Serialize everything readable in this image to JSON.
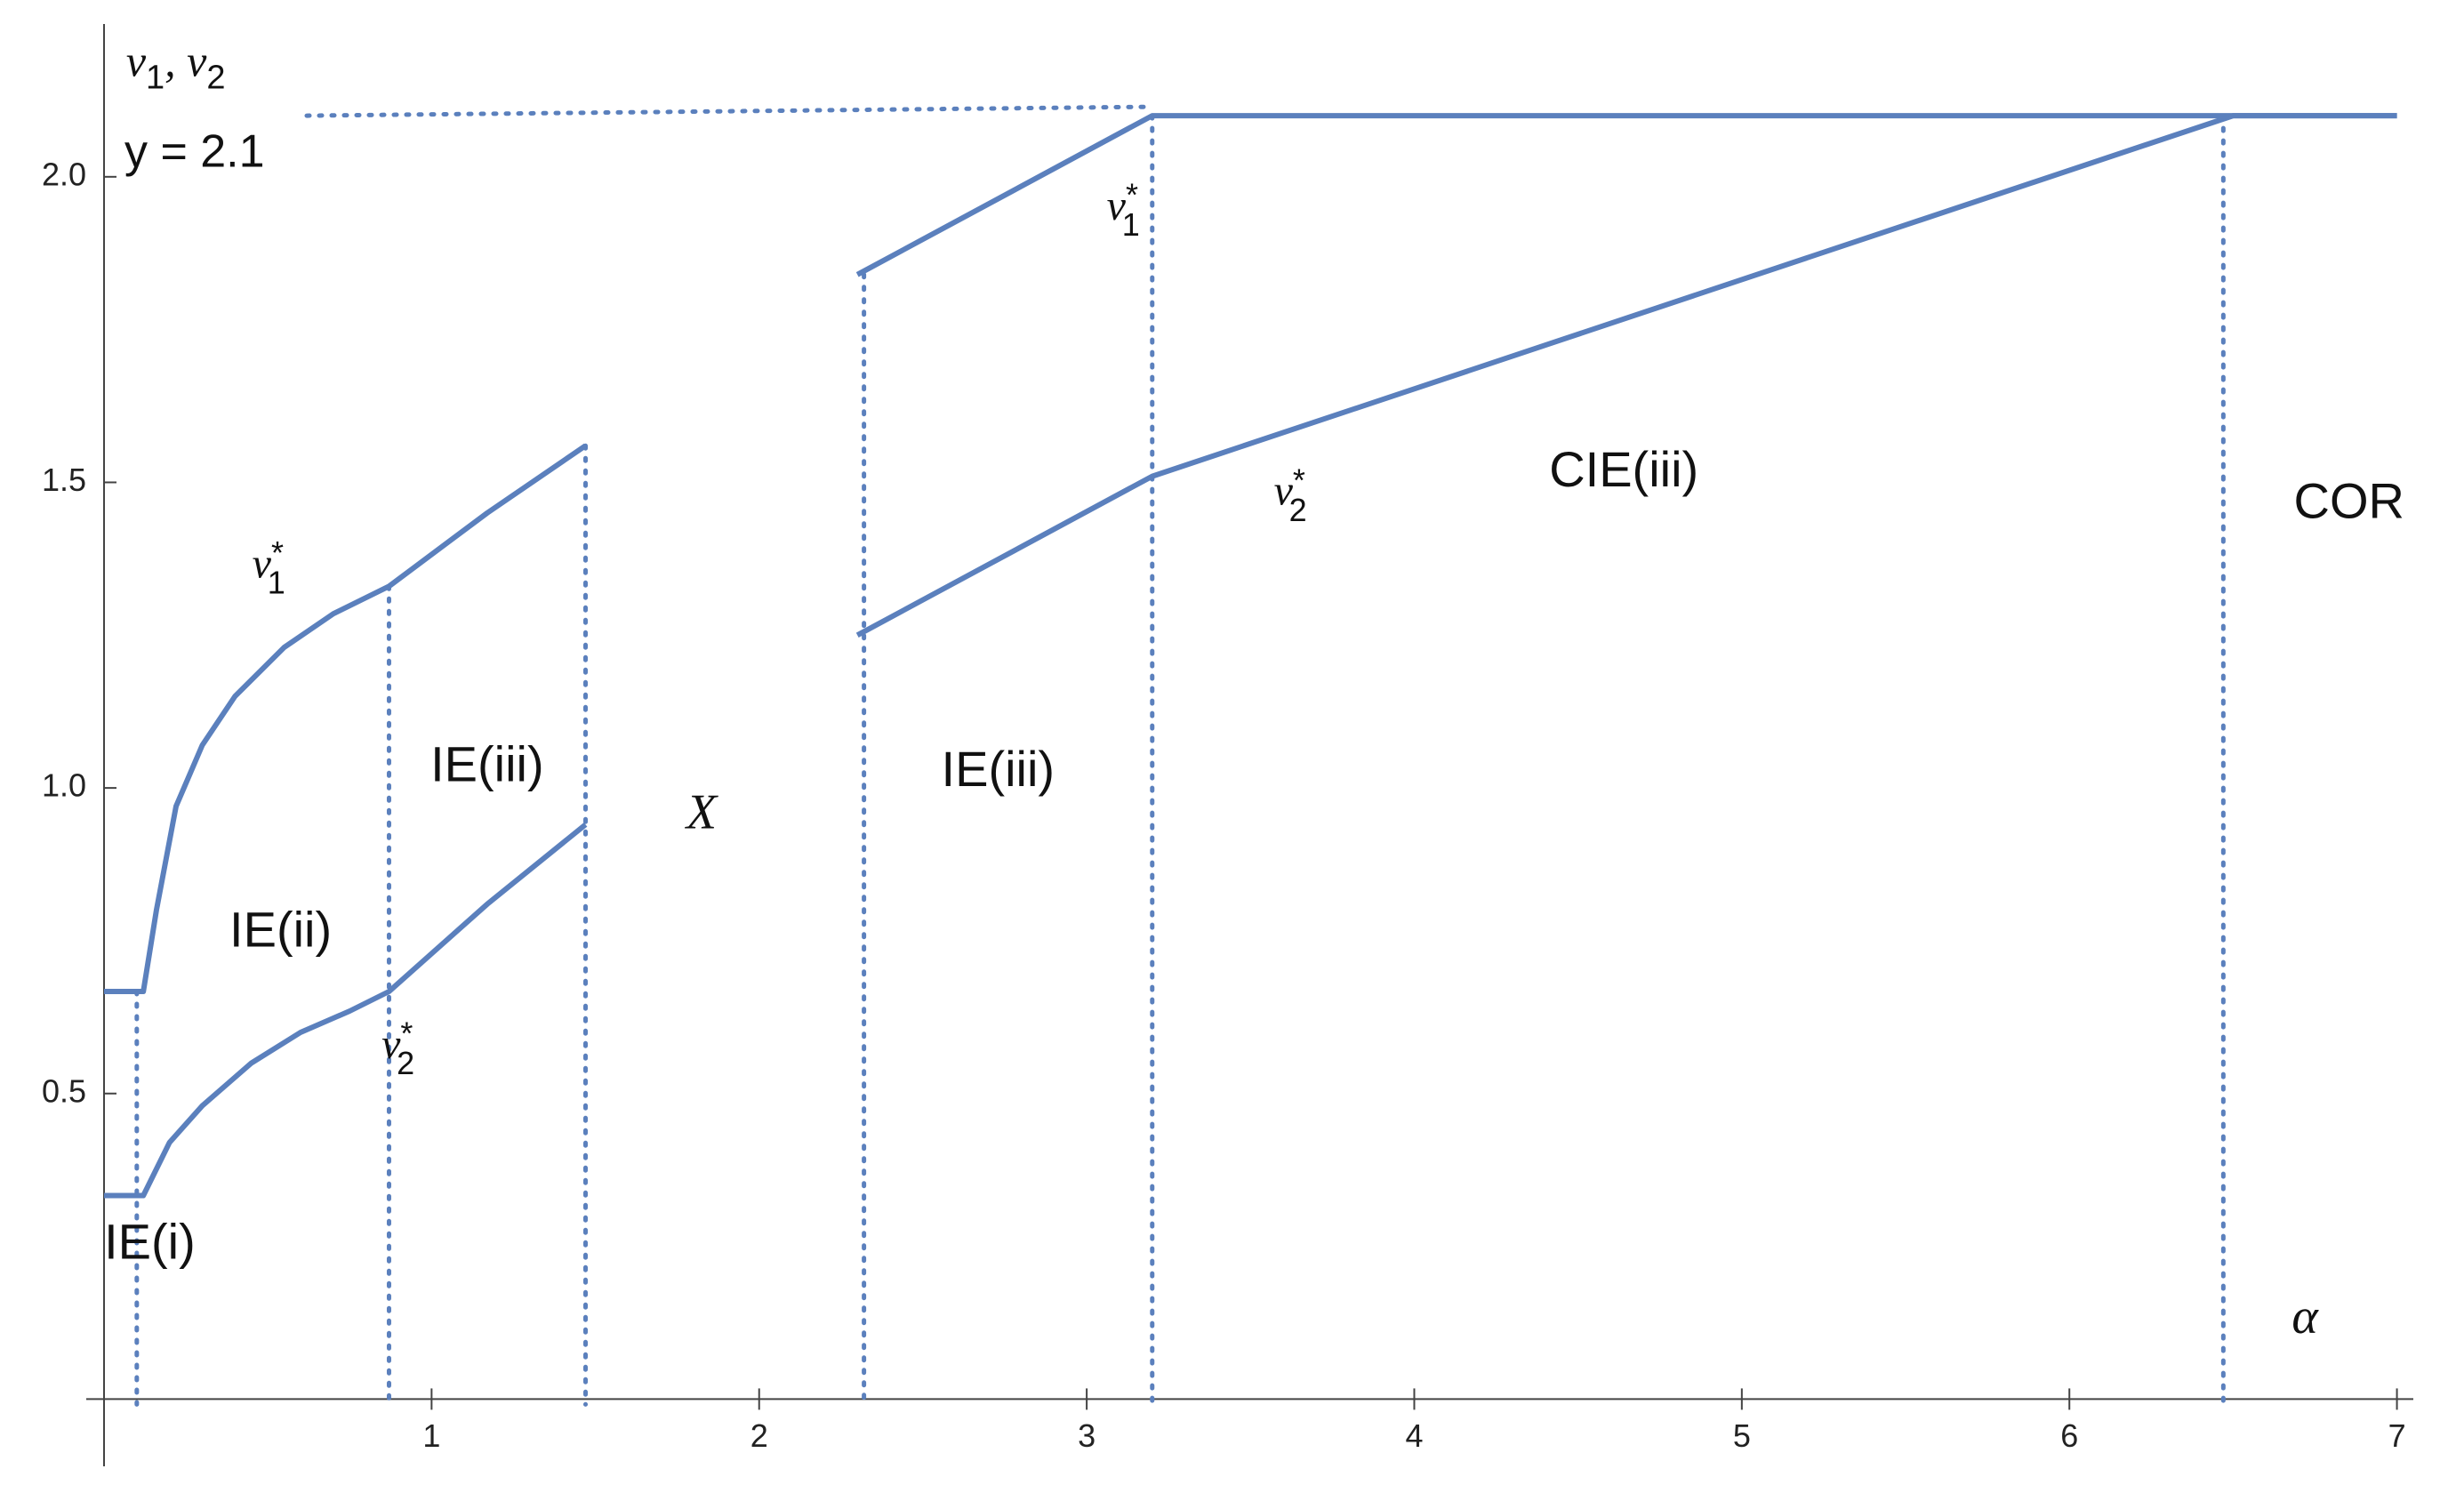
{
  "chart_data": {
    "type": "line",
    "y_label": [
      {
        "text": "v",
        "sub": "1"
      },
      {
        "text": ", v",
        "sub": "2"
      }
    ],
    "color": "#5b80bd",
    "series": [
      {
        "x": [
          0,
          0.12,
          0.16,
          0.22,
          0.3,
          0.4,
          0.55,
          0.7,
          0.87,
          1.17,
          1.47,
          null,
          2.3,
          3.2,
          7
        ],
        "values": [
          0.667,
          0.667,
          0.8,
          0.97,
          1.07,
          1.15,
          1.23,
          1.285,
          1.33,
          1.45,
          1.56,
          null,
          1.84,
          2.1,
          2.1
        ]
      },
      {
        "x": [
          0,
          0.12,
          0.2,
          0.3,
          0.45,
          0.6,
          0.75,
          0.87,
          1.17,
          1.47,
          null,
          2.3,
          3.2,
          6.5,
          7
        ],
        "values": [
          0.333,
          0.333,
          0.42,
          0.48,
          0.55,
          0.6,
          0.635,
          0.667,
          0.81,
          0.94,
          null,
          1.25,
          1.51,
          2.1,
          2.1
        ]
      }
    ],
    "hline": {
      "y": 2.1,
      "label": "y = 2.1",
      "x_end": 3.2
    },
    "vlines": [
      {
        "x": 0.1,
        "y": 0.667
      },
      {
        "x": 0.87,
        "y": 1.33
      },
      {
        "x": 1.47,
        "y": 1.56
      },
      {
        "x": 2.32,
        "y": 1.84
      },
      {
        "x": 3.2,
        "y": 2.1
      },
      {
        "x": 6.47,
        "y": 2.1
      }
    ],
    "annotations": [
      {
        "text": "v",
        "sub": "1",
        "sup": "*"
      },
      {
        "text": "v",
        "sub": "2",
        "sup": "*"
      },
      {
        "text": "v",
        "sub": "1",
        "sup": "*"
      },
      {
        "text": "v",
        "sub": "2",
        "sup": "*"
      },
      {
        "text": "IE(i)"
      },
      {
        "text": "IE(ii)"
      },
      {
        "text": "IE(iii)"
      },
      {
        "text": "X"
      },
      {
        "text": "IE(iii)"
      },
      {
        "text": "CIE(iii)"
      },
      {
        "text": "COR"
      },
      {
        "text": "α"
      }
    ],
    "xlim": [
      0,
      7.05
    ],
    "ylim": [
      -0.11,
      2.25
    ],
    "xticks": [
      1,
      2,
      3,
      4,
      5,
      6,
      7
    ],
    "yticks": [
      0.5,
      {
        "value": 1,
        "label": "1.0"
      },
      1.5,
      {
        "value": 2,
        "label": "2.0"
      }
    ]
  }
}
